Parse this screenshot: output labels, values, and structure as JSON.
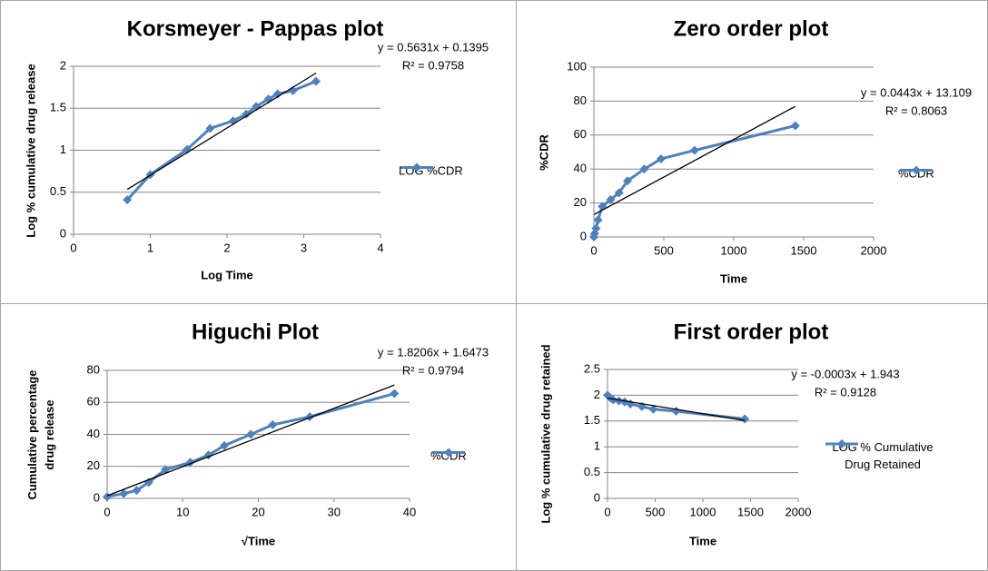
{
  "chart_data": [
    {
      "type": "scatter",
      "title": "Korsmeyer - Pappas plot",
      "x_label": "Log Time",
      "y_label": "Log % cumulative drug release",
      "x": [
        0.7,
        1.0,
        1.48,
        1.78,
        2.08,
        2.25,
        2.38,
        2.54,
        2.66,
        2.86,
        3.16
      ],
      "series": [
        {
          "name": "LOG %CDR",
          "color": "#4f81bd",
          "values": [
            0.41,
            0.71,
            1.01,
            1.26,
            1.35,
            1.43,
            1.52,
            1.61,
            1.67,
            1.71,
            1.82
          ]
        }
      ],
      "xlim": [
        0,
        4
      ],
      "xticks": [
        0,
        1,
        2,
        3,
        4
      ],
      "ylim": [
        0,
        2
      ],
      "yticks": [
        0,
        0.5,
        1,
        1.5,
        2
      ],
      "grid": true,
      "trendline": {
        "slope": 0.5631,
        "intercept": 0.1395,
        "equation": "y = 0.5631x + 0.1395",
        "r_squared": "R² = 0.9758"
      }
    },
    {
      "type": "scatter",
      "title": "Zero order plot",
      "x_label": "Time",
      "y_label": "%CDR",
      "x": [
        0,
        5,
        15,
        30,
        60,
        120,
        180,
        240,
        360,
        480,
        720,
        1440
      ],
      "series": [
        {
          "name": "%CDR",
          "color": "#4f81bd",
          "values": [
            0,
            2,
            5,
            10,
            18,
            22,
            26,
            33,
            40,
            46,
            51,
            65.5
          ]
        }
      ],
      "xlim": [
        0,
        2000
      ],
      "xticks": [
        0,
        500,
        1000,
        1500,
        2000
      ],
      "ylim": [
        0,
        100
      ],
      "yticks": [
        0,
        20,
        40,
        60,
        80,
        100
      ],
      "grid": true,
      "trendline": {
        "slope": 0.0443,
        "intercept": 13.109,
        "equation": "y = 0.0443x + 13.109",
        "r_squared": "R² = 0.8063"
      }
    },
    {
      "type": "scatter",
      "title": "Higuchi Plot",
      "x_label": "√Time",
      "y_label": "Cumulative percentage drug release",
      "x": [
        0,
        2.2,
        3.9,
        5.5,
        7.7,
        11,
        13.4,
        15.5,
        19,
        21.9,
        26.8,
        38
      ],
      "series": [
        {
          "name": "%CDR",
          "color": "#4f81bd",
          "values": [
            1,
            3,
            5,
            10,
            18,
            22.5,
            27,
            33,
            40,
            46,
            51,
            65.5
          ]
        }
      ],
      "xlim": [
        0,
        40
      ],
      "xticks": [
        0,
        10,
        20,
        30,
        40
      ],
      "ylim": [
        0,
        80
      ],
      "yticks": [
        0,
        20,
        40,
        60,
        80
      ],
      "grid": true,
      "trendline": {
        "slope": 1.8206,
        "intercept": 1.6473,
        "equation": "y = 1.8206x + 1.6473",
        "r_squared": "R² = 0.9794"
      }
    },
    {
      "type": "scatter",
      "title": "First order plot",
      "x_label": "Time",
      "y_label": "Log % cumulative drug retained",
      "x": [
        0,
        30,
        60,
        120,
        180,
        240,
        360,
        480,
        720,
        1440
      ],
      "series": [
        {
          "name": "LOG % Cumulative Drug Retained",
          "color": "#4f81bd",
          "values": [
            2.0,
            1.95,
            1.91,
            1.89,
            1.87,
            1.83,
            1.78,
            1.73,
            1.69,
            1.54
          ]
        }
      ],
      "xlim": [
        0,
        2000
      ],
      "xticks": [
        0,
        500,
        1000,
        1500,
        2000
      ],
      "ylim": [
        0,
        2.5
      ],
      "yticks": [
        0,
        0.5,
        1,
        1.5,
        2,
        2.5
      ],
      "grid": true,
      "trendline": {
        "slope": -0.0003,
        "intercept": 1.943,
        "equation": "y = -0.0003x + 1.943",
        "r_squared": "R² = 0.9128"
      }
    }
  ]
}
